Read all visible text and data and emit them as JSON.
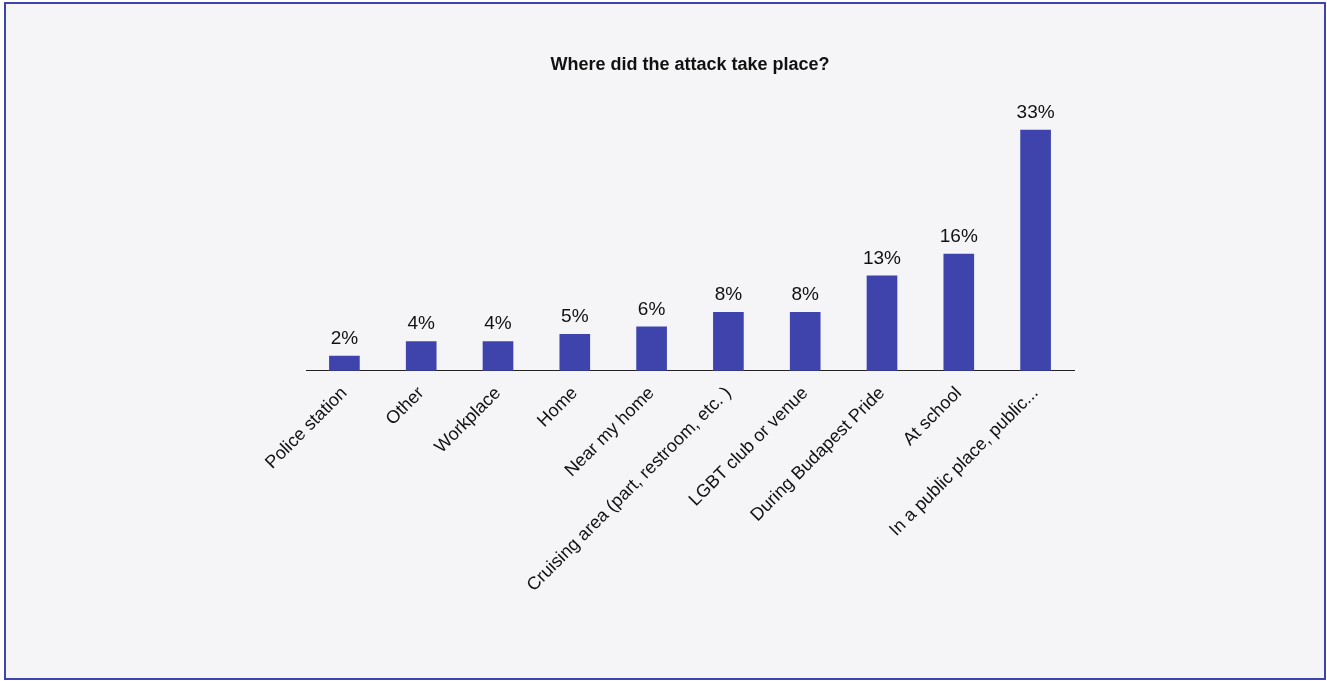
{
  "chart_data": {
    "type": "bar",
    "title": "Where did the attack take place?",
    "categories": [
      "Police station",
      "Other",
      "Workplace",
      "Home",
      "Near my home",
      "Cruising area (part, restroom, etc. )",
      "LGBT club or venue",
      "During Budapest Pride",
      "At school",
      "In a public place, public..."
    ],
    "values": [
      2,
      4,
      4,
      5,
      6,
      8,
      8,
      13,
      16,
      33
    ],
    "value_labels": [
      "2%",
      "4%",
      "4%",
      "5%",
      "6%",
      "8%",
      "8%",
      "13%",
      "16%",
      "33%"
    ],
    "color": "#3f44ac",
    "grid": false,
    "legend": false,
    "tick_labels": "x"
  }
}
